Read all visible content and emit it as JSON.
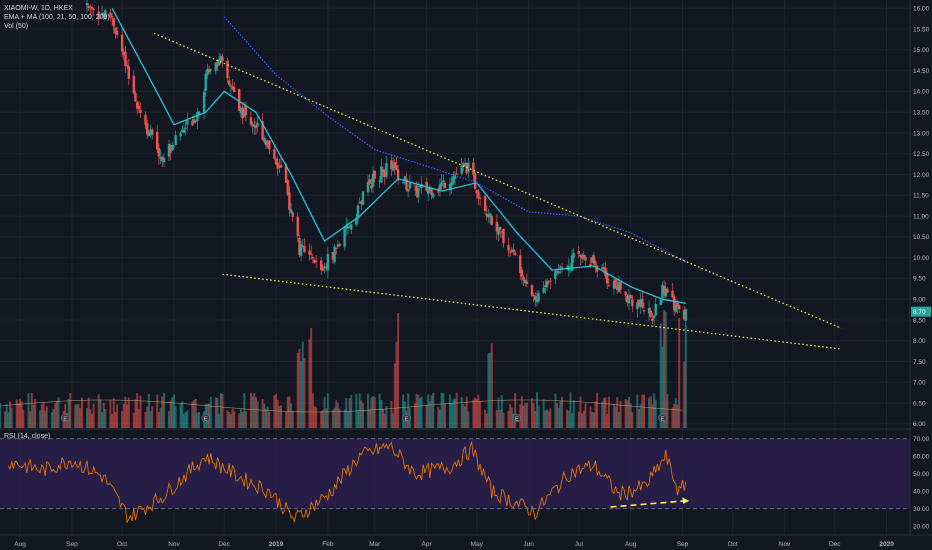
{
  "header": {
    "symbol_line": "XIAOMI-W, 1D, HKEX",
    "indicator_line": "EMA + MA (100, 21, 50, 100, 200)",
    "volume_line": "Vol (50)"
  },
  "rsi_panel": {
    "label": "RSI (14, close)",
    "levels": [
      70,
      30
    ],
    "ticks": [
      "70.00",
      "60.00",
      "50.00",
      "40.00",
      "30.00",
      "20.00"
    ]
  },
  "price_axis": {
    "ticks": [
      "16.00",
      "15.50",
      "15.00",
      "14.50",
      "14.00",
      "13.50",
      "13.00",
      "12.50",
      "12.00",
      "11.50",
      "11.00",
      "10.50",
      "10.00",
      "9.50",
      "9.00",
      "8.50",
      "8.00",
      "7.50",
      "7.00",
      "6.50",
      "6.00"
    ],
    "last_price": "8.70"
  },
  "time_axis": {
    "ticks": [
      "Aug",
      "Sep",
      "Oct",
      "Nov",
      "Dec",
      "2019",
      "Feb",
      "Mar",
      "Apr",
      "May",
      "Jun",
      "Jul",
      "Aug",
      "Sep",
      "Oct",
      "Nov",
      "Dec",
      "2020"
    ]
  },
  "earnings_marker": "E",
  "colors": {
    "background": "#131722",
    "up": "#26a69a",
    "down": "#ef5350",
    "ema_line": "#26c6da",
    "ma_line": "#2962ff",
    "trendline": "#f5f54a",
    "rsi_line": "#f57c00",
    "rsi_band": "#2a1f4d"
  },
  "chart_data": {
    "type": "candlestick",
    "title": "XIAOMI-W, 1D, HKEX",
    "x_range": [
      "2018-07-20",
      "2020-01-15"
    ],
    "y_range": [
      5.9,
      16.2
    ],
    "price_waypoints": [
      {
        "date": "2018-09-10",
        "close": 16.0
      },
      {
        "date": "2018-09-25",
        "close": 15.8
      },
      {
        "date": "2018-10-05",
        "close": 14.3
      },
      {
        "date": "2018-10-15",
        "close": 13.2
      },
      {
        "date": "2018-10-25",
        "close": 12.4
      },
      {
        "date": "2018-11-05",
        "close": 13.0
      },
      {
        "date": "2018-11-15",
        "close": 13.5
      },
      {
        "date": "2018-11-22",
        "close": 14.6
      },
      {
        "date": "2018-11-28",
        "close": 14.8
      },
      {
        "date": "2018-12-10",
        "close": 13.6
      },
      {
        "date": "2018-12-24",
        "close": 13.0
      },
      {
        "date": "2019-01-05",
        "close": 12.0
      },
      {
        "date": "2019-01-15",
        "close": 10.2
      },
      {
        "date": "2019-01-28",
        "close": 9.7
      },
      {
        "date": "2019-02-12",
        "close": 10.6
      },
      {
        "date": "2019-02-26",
        "close": 11.8
      },
      {
        "date": "2019-03-10",
        "close": 12.2
      },
      {
        "date": "2019-03-24",
        "close": 11.6
      },
      {
        "date": "2019-04-08",
        "close": 11.7
      },
      {
        "date": "2019-04-25",
        "close": 12.2
      },
      {
        "date": "2019-05-10",
        "close": 10.9
      },
      {
        "date": "2019-05-27",
        "close": 9.8
      },
      {
        "date": "2019-06-05",
        "close": 9.0
      },
      {
        "date": "2019-06-20",
        "close": 9.8
      },
      {
        "date": "2019-07-05",
        "close": 10.1
      },
      {
        "date": "2019-07-20",
        "close": 9.4
      },
      {
        "date": "2019-08-05",
        "close": 8.9
      },
      {
        "date": "2019-08-15",
        "close": 8.6
      },
      {
        "date": "2019-08-22",
        "close": 9.4
      },
      {
        "date": "2019-08-30",
        "close": 8.6
      },
      {
        "date": "2019-09-03",
        "close": 8.7
      }
    ],
    "ema_waypoints": [
      {
        "date": "2018-09-25",
        "value": 16.0
      },
      {
        "date": "2018-10-15",
        "value": 14.5
      },
      {
        "date": "2018-11-01",
        "value": 13.2
      },
      {
        "date": "2018-11-20",
        "value": 13.5
      },
      {
        "date": "2018-12-01",
        "value": 14.0
      },
      {
        "date": "2018-12-20",
        "value": 13.5
      },
      {
        "date": "2019-01-10",
        "value": 12.0
      },
      {
        "date": "2019-01-30",
        "value": 10.4
      },
      {
        "date": "2019-02-20",
        "value": 11.0
      },
      {
        "date": "2019-03-15",
        "value": 11.9
      },
      {
        "date": "2019-04-10",
        "value": 11.6
      },
      {
        "date": "2019-05-01",
        "value": 11.8
      },
      {
        "date": "2019-05-25",
        "value": 10.6
      },
      {
        "date": "2019-06-15",
        "value": 9.7
      },
      {
        "date": "2019-07-10",
        "value": 9.8
      },
      {
        "date": "2019-08-01",
        "value": 9.3
      },
      {
        "date": "2019-08-20",
        "value": 9.0
      },
      {
        "date": "2019-09-03",
        "value": 8.9
      }
    ],
    "ma_waypoints": [
      {
        "date": "2018-12-01",
        "value": 15.8
      },
      {
        "date": "2019-01-01",
        "value": 14.4
      },
      {
        "date": "2019-02-01",
        "value": 13.4
      },
      {
        "date": "2019-03-01",
        "value": 12.6
      },
      {
        "date": "2019-04-01",
        "value": 12.2
      },
      {
        "date": "2019-05-01",
        "value": 11.8
      },
      {
        "date": "2019-06-01",
        "value": 11.1
      },
      {
        "date": "2019-07-01",
        "value": 11.0
      },
      {
        "date": "2019-08-01",
        "value": 10.6
      },
      {
        "date": "2019-09-03",
        "value": 9.9
      }
    ],
    "trendlines": [
      {
        "from": {
          "date": "2018-10-20",
          "value": 15.4
        },
        "to": {
          "date": "2019-12-05",
          "value": 8.3
        }
      },
      {
        "from": {
          "date": "2018-11-30",
          "value": 9.6
        },
        "to": {
          "date": "2019-12-05",
          "value": 7.8
        }
      }
    ],
    "volume_spike_dates": [
      "2019-01-15",
      "2019-01-20",
      "2019-03-15",
      "2019-05-10",
      "2019-08-20",
      "2019-09-01"
    ],
    "earnings_dates": [
      "2018-08-28",
      "2018-11-20",
      "2019-03-20",
      "2019-05-25",
      "2019-08-20"
    ],
    "rsi_waypoints": [
      {
        "date": "2018-07-25",
        "value": 57
      },
      {
        "date": "2018-08-15",
        "value": 52
      },
      {
        "date": "2018-09-01",
        "value": 58
      },
      {
        "date": "2018-09-20",
        "value": 48
      },
      {
        "date": "2018-10-05",
        "value": 25
      },
      {
        "date": "2018-10-25",
        "value": 37
      },
      {
        "date": "2018-11-20",
        "value": 60
      },
      {
        "date": "2018-12-10",
        "value": 48
      },
      {
        "date": "2018-12-28",
        "value": 40
      },
      {
        "date": "2019-01-12",
        "value": 24
      },
      {
        "date": "2019-02-01",
        "value": 38
      },
      {
        "date": "2019-02-20",
        "value": 60
      },
      {
        "date": "2019-03-10",
        "value": 66
      },
      {
        "date": "2019-03-25",
        "value": 50
      },
      {
        "date": "2019-04-15",
        "value": 54
      },
      {
        "date": "2019-04-28",
        "value": 64
      },
      {
        "date": "2019-05-10",
        "value": 40
      },
      {
        "date": "2019-06-05",
        "value": 28
      },
      {
        "date": "2019-06-25",
        "value": 50
      },
      {
        "date": "2019-07-10",
        "value": 55
      },
      {
        "date": "2019-07-25",
        "value": 38
      },
      {
        "date": "2019-08-10",
        "value": 43
      },
      {
        "date": "2019-08-22",
        "value": 60
      },
      {
        "date": "2019-08-30",
        "value": 39
      },
      {
        "date": "2019-09-03",
        "value": 45
      }
    ],
    "rsi_arrow": {
      "from": {
        "date": "2019-07-20",
        "value": 31
      },
      "to": {
        "date": "2019-09-05",
        "value": 34.5
      }
    }
  }
}
